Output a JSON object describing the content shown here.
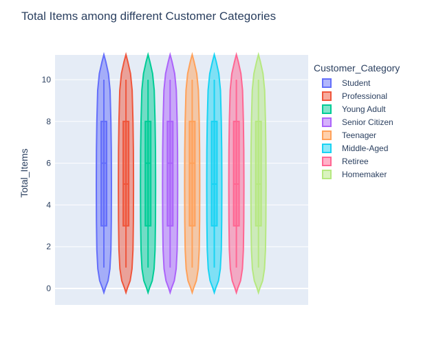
{
  "chart_data": {
    "type": "violin",
    "title": "Total Items among different Customer Categories",
    "ylabel": "Total_Items",
    "xlabel": "",
    "ylim": [
      -0.8,
      11.8
    ],
    "yticks": [
      0,
      2,
      4,
      6,
      8,
      10
    ],
    "grid": true,
    "legend_title": "Customer_Category",
    "legend_position": "right",
    "series": [
      {
        "name": "Student",
        "color": "#636efa",
        "min": 1,
        "q1": 3,
        "median": 6,
        "q3": 8,
        "max": 10,
        "kde_range": [
          -0.2,
          11.2
        ]
      },
      {
        "name": "Professional",
        "color": "#EF553B",
        "min": 1,
        "q1": 3,
        "median": 5,
        "q3": 8,
        "max": 10,
        "kde_range": [
          -0.2,
          11.2
        ]
      },
      {
        "name": "Young Adult",
        "color": "#00cc96",
        "min": 1,
        "q1": 3,
        "median": 6,
        "q3": 8,
        "max": 10,
        "kde_range": [
          -0.2,
          11.2
        ]
      },
      {
        "name": "Senior Citizen",
        "color": "#ab63fa",
        "min": 1,
        "q1": 3,
        "median": 6,
        "q3": 8,
        "max": 10,
        "kde_range": [
          -0.2,
          11.2
        ]
      },
      {
        "name": "Teenager",
        "color": "#FFA15A",
        "min": 1,
        "q1": 3,
        "median": 6,
        "q3": 8,
        "max": 10,
        "kde_range": [
          -0.2,
          11.2
        ]
      },
      {
        "name": "Middle-Aged",
        "color": "#19d3f3",
        "min": 1,
        "q1": 3,
        "median": 5,
        "q3": 8,
        "max": 10,
        "kde_range": [
          -0.2,
          11.2
        ]
      },
      {
        "name": "Retiree",
        "color": "#FF6692",
        "min": 1,
        "q1": 3,
        "median": 5,
        "q3": 8,
        "max": 10,
        "kde_range": [
          -0.2,
          11.2
        ]
      },
      {
        "name": "Homemaker",
        "color": "#B6E880",
        "min": 1,
        "q1": 3,
        "median": 5,
        "q3": 8,
        "max": 10,
        "kde_range": [
          -0.2,
          11.2
        ]
      }
    ]
  }
}
